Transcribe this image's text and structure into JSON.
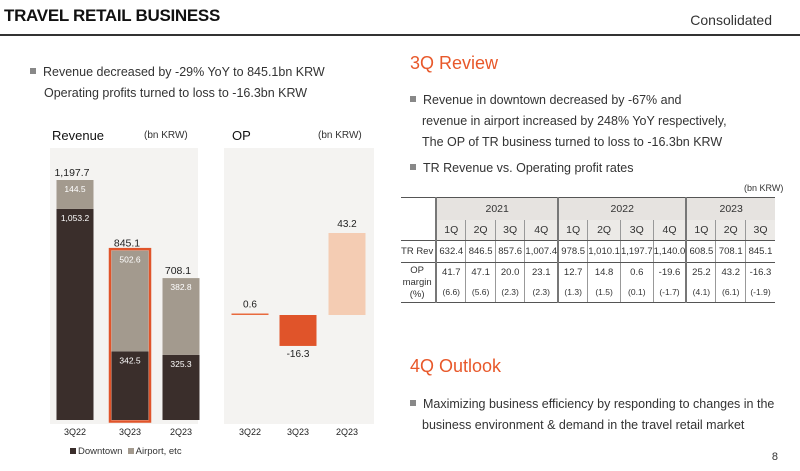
{
  "header": {
    "title": "TRAVEL RETAIL BUSINESS",
    "subtitle": "Consolidated"
  },
  "left_bullet": {
    "line1": "Revenue decreased by -29% YoY to 845.1bn KRW",
    "line2": "Operating profits turned to loss to -16.3bn KRW"
  },
  "revenue_chart": {
    "title": "Revenue",
    "unit": "(bn KRW)"
  },
  "op_chart": {
    "title": "OP",
    "unit": "(bn KRW)"
  },
  "legend": {
    "downtown": "Downtown",
    "airport": "Airport, etc"
  },
  "colors": {
    "downtown": "#3a2e2b",
    "airport": "#a39a8e",
    "highlight": "#e0542a",
    "op_negative": "#e0542a",
    "op_positive": "#f4ccb3",
    "op_small": "#e86a3d",
    "accent": "#e8582a"
  },
  "chart_data": [
    {
      "type": "bar",
      "stacked": true,
      "title": "Revenue",
      "unit": "(bn KRW)",
      "categories": [
        "3Q22",
        "3Q23",
        "2Q23"
      ],
      "series": [
        {
          "name": "Downtown",
          "values": [
            1053.2,
            342.5,
            325.3
          ],
          "labels": [
            "1,053.2",
            "342.5",
            "325.3"
          ]
        },
        {
          "name": "Airport, etc",
          "values": [
            144.5,
            502.6,
            382.8
          ],
          "labels": [
            "144.5",
            "502.6",
            "382.8"
          ]
        }
      ],
      "totals": [
        1197.7,
        845.1,
        708.1
      ],
      "total_labels": [
        "1,197.7",
        "845.1",
        "708.1"
      ],
      "highlight_index": 1
    },
    {
      "type": "bar",
      "title": "OP",
      "unit": "(bn KRW)",
      "categories": [
        "3Q22",
        "3Q23",
        "2Q23"
      ],
      "values": [
        0.6,
        -16.3,
        43.2
      ],
      "labels": [
        "0.6",
        "-16.3",
        "43.2"
      ]
    }
  ],
  "review": {
    "title": "3Q Review",
    "line1": "Revenue in downtown decreased by -67% and",
    "line2": "revenue in airport increased by 248% YoY respectively,",
    "line3": "The OP of TR business turned to loss to -16.3bn KRW",
    "line4": "TR Revenue vs. Operating profit rates"
  },
  "table": {
    "unit": "(bn KRW)",
    "years": [
      "2021",
      "2022",
      "2023"
    ],
    "quarters": [
      "1Q",
      "2Q",
      "3Q",
      "4Q",
      "1Q",
      "2Q",
      "3Q",
      "4Q",
      "1Q",
      "2Q",
      "3Q"
    ],
    "row1_label": "TR Rev",
    "tr_rev": [
      "632.4",
      "846.5",
      "857.6",
      "1,007.4",
      "978.5",
      "1,010.1",
      "1,197.7",
      "1,140.0",
      "608.5",
      "708.1",
      "845.1"
    ],
    "row2_label_1": "OP",
    "row2_label_2": "margin",
    "row2_label_3": "(%)",
    "op": [
      "41.7",
      "47.1",
      "20.0",
      "23.1",
      "12.7",
      "14.8",
      "0.6",
      "-19.6",
      "25.2",
      "43.2",
      "-16.3"
    ],
    "margin": [
      "(6.6)",
      "(5.6)",
      "(2.3)",
      "(2.3)",
      "(1.3)",
      "(1.5)",
      "(0.1)",
      "(-1.7)",
      "(4.1)",
      "(6.1)",
      "(-1.9)"
    ]
  },
  "outlook": {
    "title": "4Q Outlook",
    "line1": "Maximizing business efficiency by responding to changes in the",
    "line2": "business environment & demand in the travel retail market"
  },
  "page_number": "8"
}
